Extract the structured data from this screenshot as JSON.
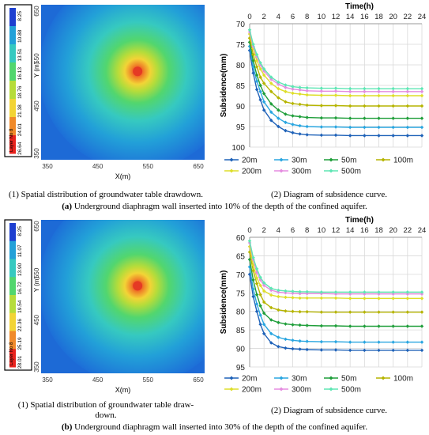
{
  "figure": {
    "panel_a": {
      "map": {
        "x_label": "X(m)",
        "y_label": "Y (m)",
        "x_ticks": [
          "350",
          "450",
          "550",
          "650"
        ],
        "y_ticks": [
          "650",
          "550",
          "450",
          "350"
        ],
        "legend_title": "Layer No 8",
        "legend_values": [
          "8.25",
          "10.88",
          "13.51",
          "16.13",
          "18.76",
          "21.38",
          "24.01",
          "26.64"
        ],
        "colors": [
          "#1d3fd0",
          "#22a0d8",
          "#36c9c0",
          "#52d66e",
          "#b6dc3a",
          "#f2d436",
          "#f08a2a",
          "#e8231e"
        ]
      },
      "left_caption": "(1) Spatial distribution of groundwater table drawdown.",
      "right_caption": "(2) Diagram of subsidence curve.",
      "panel_letter": "(a)",
      "panel_caption": "Underground diaphragm wall inserted into 10% of the depth of the confined aquifer."
    },
    "panel_b": {
      "map": {
        "x_label": "X(m)",
        "y_label": "Y (m)",
        "x_ticks": [
          "350",
          "450",
          "550",
          "650"
        ],
        "y_ticks": [
          "650",
          "550",
          "450",
          "350"
        ],
        "legend_title": "Layer No 8",
        "legend_values": [
          "8.25",
          "11.07",
          "13.90",
          "16.72",
          "19.54",
          "22.36",
          "25.19",
          "28.01"
        ],
        "colors": [
          "#1d3fd0",
          "#22a0d8",
          "#36c9c0",
          "#52d66e",
          "#b6dc3a",
          "#f2d436",
          "#f08a2a",
          "#e8231e"
        ]
      },
      "left_caption_line1": "(1) Spatial distribution of groundwater table draw-",
      "left_caption_line2": "down.",
      "right_caption": "(2) Diagram of subsidence curve.",
      "panel_letter": "(b)",
      "panel_caption": "Underground diaphragm wall inserted into 30% of the depth of the confined aquifer."
    }
  },
  "chart_data": [
    {
      "type": "line",
      "xlabel": "Time(h)",
      "ylabel": "Subsidence(mm)",
      "x": [
        0,
        0.5,
        1,
        1.5,
        2,
        3,
        4,
        5,
        6,
        7,
        8,
        10,
        12,
        14,
        16,
        18,
        20,
        22,
        24
      ],
      "xticks": [
        0,
        2,
        4,
        6,
        8,
        10,
        12,
        14,
        16,
        18,
        20,
        22,
        24
      ],
      "xlim": [
        0,
        24
      ],
      "ylim": [
        70,
        100
      ],
      "y_inverted": true,
      "yticks": [
        70,
        75,
        80,
        85,
        90,
        95,
        100
      ],
      "legend_position": "bottom",
      "series": [
        {
          "name": "20m",
          "color": "#1f62b8",
          "values": [
            76.5,
            82,
            86,
            88.5,
            91,
            93.5,
            95,
            96,
            96.5,
            96.8,
            97,
            97.1,
            97.1,
            97.2,
            97.2,
            97.2,
            97.2,
            97.2,
            97.2
          ]
        },
        {
          "name": "30m",
          "color": "#2aa6e0",
          "values": [
            75.5,
            80.5,
            84,
            86.5,
            89,
            91.5,
            93,
            94,
            94.5,
            94.8,
            95,
            95.1,
            95.1,
            95.2,
            95.2,
            95.2,
            95.2,
            95.2,
            95.2
          ]
        },
        {
          "name": "50m",
          "color": "#1f9e3a",
          "values": [
            74.5,
            79,
            82.5,
            85,
            87,
            89.5,
            91,
            92,
            92.4,
            92.6,
            92.8,
            92.9,
            92.9,
            93,
            93,
            93,
            93,
            93,
            93
          ]
        },
        {
          "name": "100m",
          "color": "#b5b400",
          "values": [
            73.5,
            77.5,
            80.5,
            83,
            84.5,
            86.5,
            88,
            89,
            89.4,
            89.6,
            89.8,
            89.9,
            89.9,
            90,
            90,
            90,
            90,
            90,
            90
          ]
        },
        {
          "name": "200m",
          "color": "#dede2a",
          "values": [
            72.5,
            76,
            79,
            81,
            82.5,
            84.5,
            85.8,
            86.5,
            86.9,
            87.1,
            87.3,
            87.4,
            87.4,
            87.5,
            87.5,
            87.5,
            87.5,
            87.5,
            87.5
          ]
        },
        {
          "name": "300m",
          "color": "#e58ce0",
          "values": [
            72,
            75.5,
            78,
            80,
            81.5,
            83.5,
            84.7,
            85.5,
            85.9,
            86.1,
            86.3,
            86.4,
            86.4,
            86.5,
            86.5,
            86.5,
            86.5,
            86.5,
            86.5
          ]
        },
        {
          "name": "500m",
          "color": "#5ee6b4",
          "values": [
            71.5,
            75,
            77.5,
            79.5,
            81,
            83,
            84.2,
            84.9,
            85.3,
            85.5,
            85.6,
            85.7,
            85.7,
            85.8,
            85.8,
            85.8,
            85.8,
            85.8,
            85.8
          ]
        }
      ]
    },
    {
      "type": "line",
      "xlabel": "Time(h)",
      "ylabel": "Subsidence(mm)",
      "x": [
        0,
        0.5,
        1,
        1.5,
        2,
        3,
        4,
        5,
        6,
        7,
        8,
        10,
        12,
        14,
        16,
        18,
        20,
        22,
        24
      ],
      "xticks": [
        0,
        2,
        4,
        6,
        8,
        10,
        12,
        14,
        16,
        18,
        20,
        22,
        24
      ],
      "xlim": [
        0,
        24
      ],
      "ylim": [
        60,
        95
      ],
      "y_inverted": true,
      "yticks": [
        60,
        65,
        70,
        75,
        80,
        85,
        90,
        95
      ],
      "legend_position": "bottom",
      "series": [
        {
          "name": "20m",
          "color": "#1f62b8",
          "values": [
            70,
            76,
            80,
            83.5,
            86,
            88.5,
            89.5,
            89.9,
            90.1,
            90.2,
            90.3,
            90.4,
            90.4,
            90.5,
            90.5,
            90.5,
            90.5,
            90.5,
            90.5
          ]
        },
        {
          "name": "30m",
          "color": "#2aa6e0",
          "values": [
            68,
            74,
            78,
            81,
            83.5,
            86,
            87,
            87.5,
            87.8,
            88,
            88.1,
            88.2,
            88.2,
            88.3,
            88.3,
            88.3,
            88.3,
            88.3,
            88.3
          ]
        },
        {
          "name": "50m",
          "color": "#1f9e3a",
          "values": [
            66,
            71.5,
            75.5,
            78.5,
            80.5,
            82.3,
            83,
            83.4,
            83.6,
            83.7,
            83.8,
            83.9,
            83.9,
            84,
            84,
            84,
            84,
            84,
            84
          ]
        },
        {
          "name": "100m",
          "color": "#b5b400",
          "values": [
            64,
            69,
            72.5,
            75.5,
            77.5,
            79,
            79.6,
            79.9,
            80,
            80.1,
            80.1,
            80.2,
            80.2,
            80.2,
            80.2,
            80.2,
            80.2,
            80.2,
            80.2
          ]
        },
        {
          "name": "200m",
          "color": "#dede2a",
          "values": [
            62.5,
            67.5,
            71,
            73,
            74.5,
            75.6,
            76,
            76.2,
            76.3,
            76.4,
            76.4,
            76.4,
            76.4,
            76.5,
            76.5,
            76.5,
            76.5,
            76.5,
            76.5
          ]
        },
        {
          "name": "300m",
          "color": "#e58ce0",
          "values": [
            61.5,
            66,
            69.5,
            71.5,
            73,
            74.3,
            74.8,
            75,
            75.1,
            75.2,
            75.2,
            75.2,
            75.3,
            75.3,
            75.3,
            75.3,
            75.3,
            75.3,
            75.3
          ]
        },
        {
          "name": "500m",
          "color": "#5ee6b4",
          "values": [
            61,
            65.5,
            68.5,
            70.8,
            72.3,
            73.8,
            74.3,
            74.5,
            74.6,
            74.7,
            74.7,
            74.8,
            74.8,
            74.8,
            74.8,
            74.8,
            74.8,
            74.8,
            74.8
          ]
        }
      ]
    }
  ]
}
